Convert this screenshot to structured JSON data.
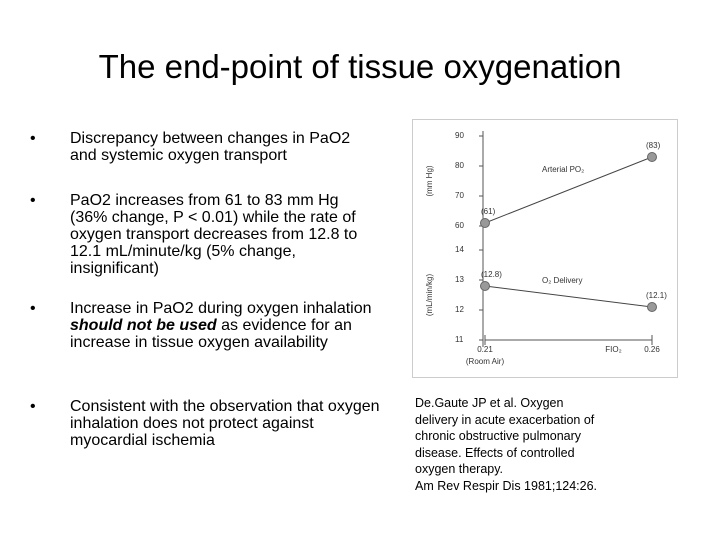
{
  "title": "The end-point of tissue oxygenation",
  "bullets": [
    {
      "marker": "•",
      "parts": [
        "Discrepancy between changes in PaO2 and systemic oxygen  transport"
      ]
    },
    {
      "marker": "•",
      "parts": [
        "PaO2 increases from 61 to 83 mm Hg (36% change, P < 0.01) while the rate of oxygen transport decreases from 12.8 to 12.1 mL/minute/kg (5% change, insignificant)"
      ]
    },
    {
      "marker": "•",
      "parts": [
        "Increase in PaO2 during oxygen inhalation ",
        "should not be used",
        " as evidence for an increase in tissue oxygen availability"
      ]
    },
    {
      "marker": "•",
      "parts": [
        "Consistent with the observation that oxygen inhalation does not protect against myocardial ischemia"
      ]
    }
  ],
  "figure": {
    "type": "line",
    "x": [
      0.21,
      0.26
    ],
    "xlim": [
      0.21,
      0.26
    ],
    "xticks": [
      0.21,
      0.26
    ],
    "xlabel": "FIO₂",
    "x_note": "(Room Air)",
    "panels": [
      {
        "ylabel": "(mm Hg)",
        "ylim": [
          60,
          90
        ],
        "yticks": [
          60,
          70,
          80,
          90
        ],
        "name": "Arterial PO₂",
        "color": "#999999",
        "values": [
          61,
          83
        ],
        "value_labels": [
          "(61)",
          "(83)"
        ]
      },
      {
        "ylabel": "(mL/min/kg)",
        "ylim": [
          11,
          14
        ],
        "yticks": [
          11,
          12,
          13,
          14
        ],
        "name": "O₂ Delivery",
        "color": "#999999",
        "values": [
          12.8,
          12.1
        ],
        "value_labels": [
          "(12.8)",
          "(12.1)"
        ]
      }
    ]
  },
  "citation": [
    "De.Gaute JP et al. Oxygen",
    "delivery in acute exacerbation of",
    "chronic obstructive pulmonary",
    "disease. Effects of controlled",
    "oxygen therapy.",
    "Am Rev Respir Dis 1981;124:26."
  ]
}
